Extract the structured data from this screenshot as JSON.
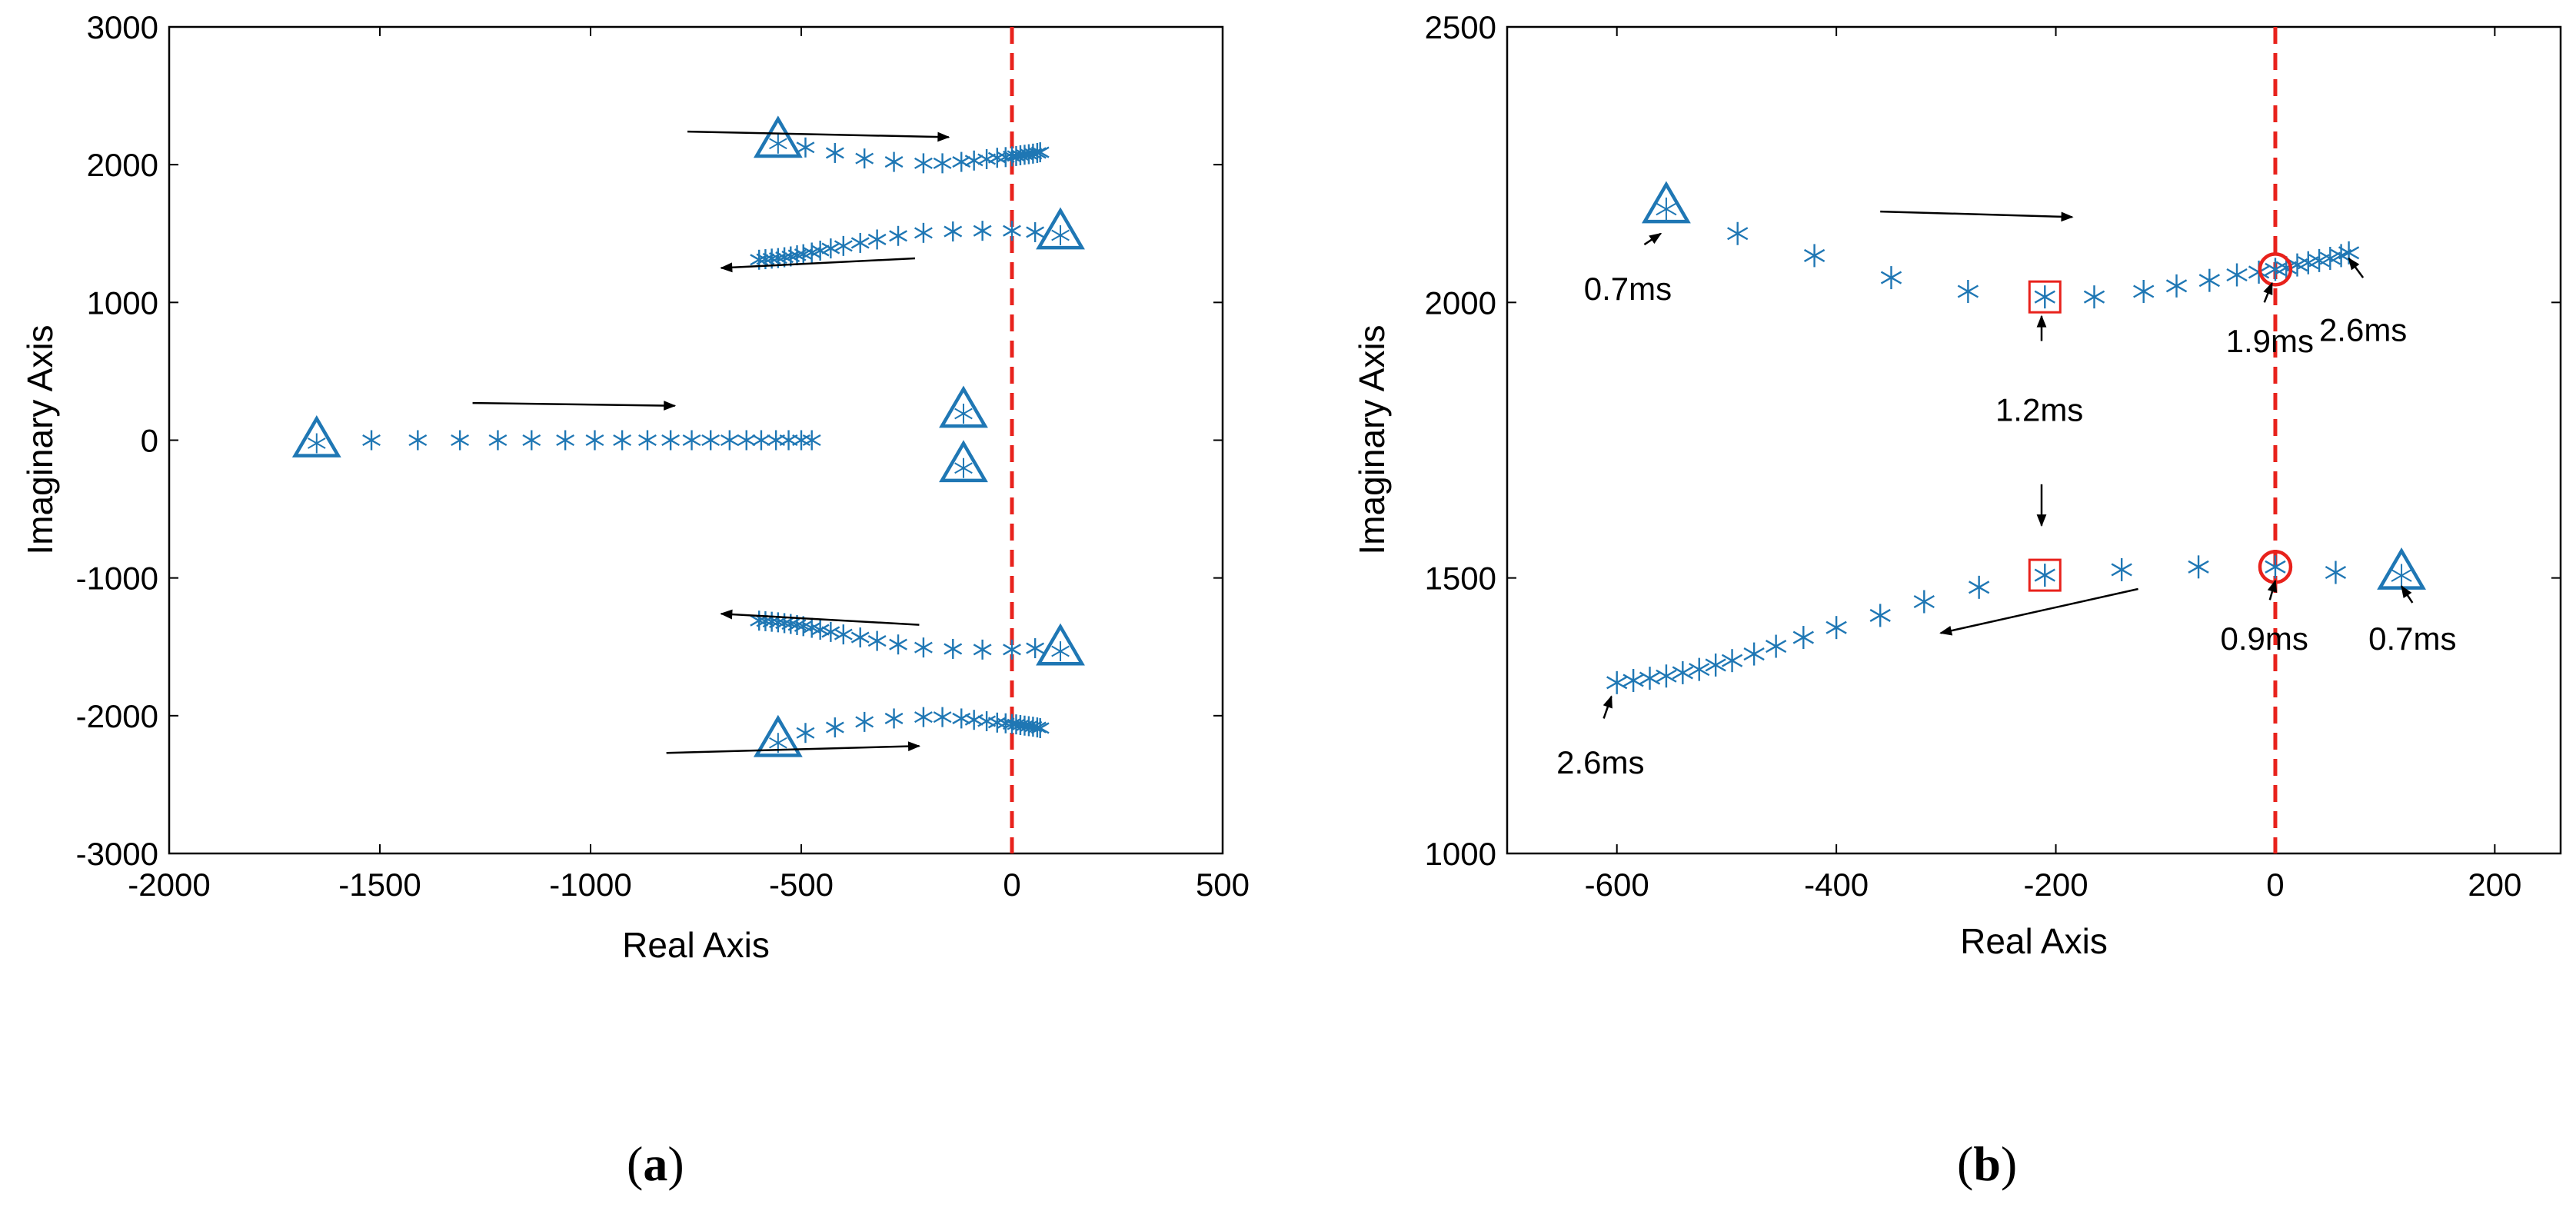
{
  "colors": {
    "marker": "#1f77b4",
    "highlight": "#e8221c",
    "axis": "#000000",
    "arrow": "#000000"
  },
  "captions": {
    "a_open": "(",
    "a_letter": "a",
    "a_close": ")",
    "b_open": "(",
    "b_letter": "b",
    "b_close": ")"
  },
  "chart_data": [
    {
      "id": "a",
      "type": "scatter",
      "title": "",
      "xlabel": "Real Axis",
      "ylabel": "Imaginary Axis",
      "xlim": [
        -2000,
        500
      ],
      "ylim": [
        -3000,
        3000
      ],
      "xticks": [
        -2000,
        -1500,
        -1000,
        -500,
        0,
        500
      ],
      "yticks": [
        -3000,
        -2000,
        -1000,
        0,
        1000,
        2000,
        3000
      ],
      "vline": {
        "x": 0,
        "style": "dashed",
        "color": "#e8221c"
      },
      "series": [
        {
          "name": "upper-outer-branch",
          "marker": "asterisk",
          "points": [
            [
              -490,
              2125
            ],
            [
              -420,
              2085
            ],
            [
              -350,
              2045
            ],
            [
              -280,
              2020
            ],
            [
              -210,
              2010
            ],
            [
              -165,
              2010
            ],
            [
              -120,
              2020
            ],
            [
              -90,
              2030
            ],
            [
              -60,
              2040
            ],
            [
              -35,
              2050
            ],
            [
              -15,
              2055
            ],
            [
              0,
              2060
            ],
            [
              10,
              2063
            ],
            [
              20,
              2068
            ],
            [
              30,
              2072
            ],
            [
              40,
              2076
            ],
            [
              50,
              2080
            ],
            [
              60,
              2085
            ],
            [
              67,
              2090
            ]
          ]
        },
        {
          "name": "upper-inner-branch",
          "marker": "asterisk",
          "points": [
            [
              55,
              1510
            ],
            [
              0,
              1520
            ],
            [
              -70,
              1520
            ],
            [
              -140,
              1515
            ],
            [
              -210,
              1505
            ],
            [
              -270,
              1483
            ],
            [
              -320,
              1457
            ],
            [
              -360,
              1432
            ],
            [
              -400,
              1410
            ],
            [
              -430,
              1392
            ],
            [
              -455,
              1376
            ],
            [
              -475,
              1362
            ],
            [
              -495,
              1350
            ],
            [
              -510,
              1342
            ],
            [
              -525,
              1334
            ],
            [
              -540,
              1328
            ],
            [
              -555,
              1322
            ],
            [
              -570,
              1318
            ],
            [
              -585,
              1314
            ],
            [
              -600,
              1310
            ]
          ]
        },
        {
          "name": "lower-inner-branch",
          "marker": "asterisk",
          "points": [
            [
              55,
              -1510
            ],
            [
              0,
              -1520
            ],
            [
              -70,
              -1520
            ],
            [
              -140,
              -1515
            ],
            [
              -210,
              -1505
            ],
            [
              -270,
              -1483
            ],
            [
              -320,
              -1457
            ],
            [
              -360,
              -1432
            ],
            [
              -400,
              -1410
            ],
            [
              -430,
              -1392
            ],
            [
              -455,
              -1376
            ],
            [
              -475,
              -1362
            ],
            [
              -495,
              -1350
            ],
            [
              -510,
              -1342
            ],
            [
              -525,
              -1334
            ],
            [
              -540,
              -1328
            ],
            [
              -555,
              -1322
            ],
            [
              -570,
              -1318
            ],
            [
              -585,
              -1314
            ],
            [
              -600,
              -1310
            ]
          ]
        },
        {
          "name": "lower-outer-branch",
          "marker": "asterisk",
          "points": [
            [
              -490,
              -2125
            ],
            [
              -420,
              -2085
            ],
            [
              -350,
              -2045
            ],
            [
              -280,
              -2020
            ],
            [
              -210,
              -2010
            ],
            [
              -165,
              -2010
            ],
            [
              -120,
              -2020
            ],
            [
              -90,
              -2030
            ],
            [
              -60,
              -2040
            ],
            [
              -35,
              -2050
            ],
            [
              -15,
              -2055
            ],
            [
              0,
              -2060
            ],
            [
              10,
              -2063
            ],
            [
              20,
              -2068
            ],
            [
              30,
              -2072
            ],
            [
              40,
              -2076
            ],
            [
              50,
              -2080
            ],
            [
              60,
              -2085
            ],
            [
              67,
              -2090
            ]
          ]
        },
        {
          "name": "real-axis-branch",
          "marker": "asterisk",
          "points": [
            [
              -1520,
              0
            ],
            [
              -1410,
              0
            ],
            [
              -1310,
              0
            ],
            [
              -1220,
              0
            ],
            [
              -1140,
              0
            ],
            [
              -1060,
              0
            ],
            [
              -990,
              0
            ],
            [
              -925,
              0
            ],
            [
              -865,
              0
            ],
            [
              -810,
              0
            ],
            [
              -760,
              0
            ],
            [
              -715,
              0
            ],
            [
              -670,
              0
            ],
            [
              -630,
              0
            ],
            [
              -595,
              0
            ],
            [
              -560,
              0
            ],
            [
              -530,
              0
            ],
            [
              -500,
              0
            ],
            [
              -475,
              0
            ]
          ]
        },
        {
          "name": "start-points",
          "marker": "triangle",
          "points": [
            [
              -555,
              2175
            ],
            [
              115,
              1510
            ],
            [
              -1650,
              0
            ],
            [
              -115,
              215
            ],
            [
              -115,
              -180
            ],
            [
              115,
              -1510
            ],
            [
              -555,
              -2175
            ]
          ]
        }
      ],
      "arrows": [
        {
          "from": [
            -770,
            2240
          ],
          "to": [
            -150,
            2200
          ]
        },
        {
          "from": [
            -230,
            1320
          ],
          "to": [
            -690,
            1250
          ]
        },
        {
          "from": [
            -1280,
            270
          ],
          "to": [
            -800,
            250
          ]
        },
        {
          "from": [
            -220,
            -1340
          ],
          "to": [
            -690,
            -1260
          ]
        },
        {
          "from": [
            -820,
            -2270
          ],
          "to": [
            -220,
            -2220
          ]
        }
      ]
    },
    {
      "id": "b",
      "type": "scatter",
      "title": "",
      "xlabel": "Real Axis",
      "ylabel": "Imaginary Axis",
      "xlim": [
        -700,
        260
      ],
      "ylim": [
        1000,
        2500
      ],
      "xticks": [
        -600,
        -400,
        -200,
        0,
        200
      ],
      "yticks": [
        1000,
        1500,
        2000,
        2500
      ],
      "vline": {
        "x": 0,
        "style": "dashed",
        "color": "#e8221c"
      },
      "series": [
        {
          "name": "upper-branch",
          "marker": "asterisk",
          "points": [
            [
              -490,
              2125
            ],
            [
              -420,
              2085
            ],
            [
              -350,
              2045
            ],
            [
              -280,
              2020
            ],
            [
              -210,
              2010
            ],
            [
              -165,
              2010
            ],
            [
              -120,
              2020
            ],
            [
              -90,
              2030
            ],
            [
              -60,
              2040
            ],
            [
              -35,
              2050
            ],
            [
              -15,
              2055
            ],
            [
              0,
              2060
            ],
            [
              10,
              2063
            ],
            [
              20,
              2068
            ],
            [
              30,
              2072
            ],
            [
              40,
              2076
            ],
            [
              50,
              2080
            ],
            [
              60,
              2085
            ],
            [
              67,
              2090
            ]
          ]
        },
        {
          "name": "lower-branch",
          "marker": "asterisk",
          "points": [
            [
              55,
              1510
            ],
            [
              0,
              1520
            ],
            [
              -70,
              1520
            ],
            [
              -140,
              1515
            ],
            [
              -210,
              1505
            ],
            [
              -270,
              1483
            ],
            [
              -320,
              1457
            ],
            [
              -360,
              1432
            ],
            [
              -400,
              1410
            ],
            [
              -430,
              1392
            ],
            [
              -455,
              1376
            ],
            [
              -475,
              1362
            ],
            [
              -495,
              1350
            ],
            [
              -510,
              1342
            ],
            [
              -525,
              1334
            ],
            [
              -540,
              1328
            ],
            [
              -555,
              1322
            ],
            [
              -570,
              1318
            ],
            [
              -585,
              1314
            ],
            [
              -600,
              1310
            ]
          ]
        },
        {
          "name": "start-points",
          "marker": "triangle",
          "points": [
            [
              -555,
              2175
            ],
            [
              115,
              1510
            ]
          ]
        },
        {
          "name": "square-highlights",
          "marker": "square",
          "points": [
            [
              -210,
              2010
            ],
            [
              -210,
              1505
            ]
          ]
        },
        {
          "name": "circle-highlights",
          "marker": "circle",
          "points": [
            [
              0,
              2060
            ],
            [
              0,
              1520
            ]
          ]
        }
      ],
      "arrows": [
        {
          "from": [
            -360,
            2165
          ],
          "to": [
            -185,
            2155
          ]
        },
        {
          "from": [
            -125,
            1480
          ],
          "to": [
            -305,
            1400
          ]
        }
      ],
      "annotations": [
        {
          "text": "0.7ms",
          "text_at": [
            -590,
            2005
          ],
          "arrow_from": [
            -575,
            2105
          ],
          "arrow_to": [
            -560,
            2125
          ]
        },
        {
          "text": "1.2ms",
          "text_at": [
            -215,
            1785
          ],
          "arrow_from": [
            -213,
            1930
          ],
          "arrow_to": [
            -213,
            1975
          ]
        },
        {
          "text": "1.9ms",
          "text_at": [
            -5,
            1910
          ],
          "arrow_from": [
            -10,
            2000
          ],
          "arrow_to": [
            -3,
            2035
          ]
        },
        {
          "text": "2.6ms",
          "text_at": [
            80,
            1930
          ],
          "arrow_from": [
            80,
            2045
          ],
          "arrow_to": [
            67,
            2080
          ]
        },
        {
          "text": "",
          "text_at": [
            0,
            0
          ],
          "arrow_from": [
            -213,
            1670
          ],
          "arrow_to": [
            -213,
            1595
          ]
        },
        {
          "text": "0.9ms",
          "text_at": [
            -10,
            1370
          ],
          "arrow_from": [
            -5,
            1460
          ],
          "arrow_to": [
            0,
            1495
          ]
        },
        {
          "text": "0.7ms",
          "text_at": [
            125,
            1370
          ],
          "arrow_from": [
            125,
            1455
          ],
          "arrow_to": [
            115,
            1485
          ]
        },
        {
          "text": "2.6ms",
          "text_at": [
            -615,
            1145
          ],
          "arrow_from": [
            -612,
            1245
          ],
          "arrow_to": [
            -605,
            1285
          ]
        }
      ]
    }
  ]
}
